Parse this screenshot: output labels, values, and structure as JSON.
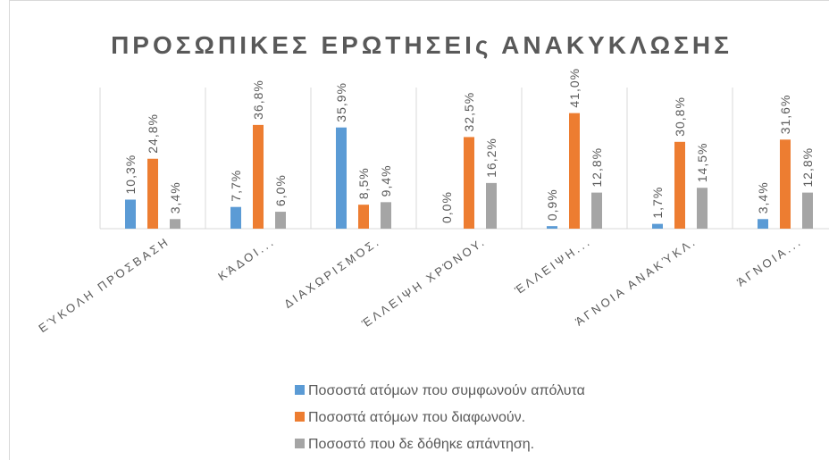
{
  "chart_data": {
    "type": "bar",
    "title": "ΠΡΟΣΩΠΙΚΕΣ ΕΡΩΤΗΣΕΙς ΑΝΑΚΥΚΛΩΣΗΣ",
    "categories": [
      "ΕΎΚΟΛΗ ΠΡΌΣΒΑΣΗ",
      "ΚΆΔΟΙ...",
      "ΔΙΑΧΩΡΙΣΜΌΣ.",
      "ΈΛΛΕΙΨΗ ΧΡΌΝΟΥ.",
      "ΈΛΛΕΙΨΗ...",
      "ΆΓΝΟΙΑ ΑΝΑΚΎΚΛ.",
      "ΆΓΝΟΙΑ..."
    ],
    "series": [
      {
        "name": "Ποσοστά ατόμων που συμφωνούν απόλυτα",
        "color": "#5b9bd5",
        "values": [
          10.3,
          7.7,
          35.9,
          0.0,
          0.9,
          1.7,
          3.4
        ],
        "value_labels": [
          "10,3%",
          "7,7%",
          "35,9%",
          "0,0%",
          "0,9%",
          "1,7%",
          "3,4%"
        ]
      },
      {
        "name": "Ποσοστά ατόμων που διαφωνούν.",
        "color": "#ed7d31",
        "values": [
          24.8,
          36.8,
          8.5,
          32.5,
          41.0,
          30.8,
          31.6
        ],
        "value_labels": [
          "24,8%",
          "36,8%",
          "8,5%",
          "32,5%",
          "41,0%",
          "30,8%",
          "31,6%"
        ]
      },
      {
        "name": "Ποσοστό που δε δόθηκε απάντηση.",
        "color": "#a5a5a5",
        "values": [
          3.4,
          6.0,
          9.4,
          16.2,
          12.8,
          14.5,
          12.8
        ],
        "value_labels": [
          "3,4%",
          "6,0%",
          "9,4%",
          "16,2%",
          "12,8%",
          "14,5%",
          "12,8%"
        ]
      }
    ],
    "ylim": [
      0,
      45
    ]
  }
}
